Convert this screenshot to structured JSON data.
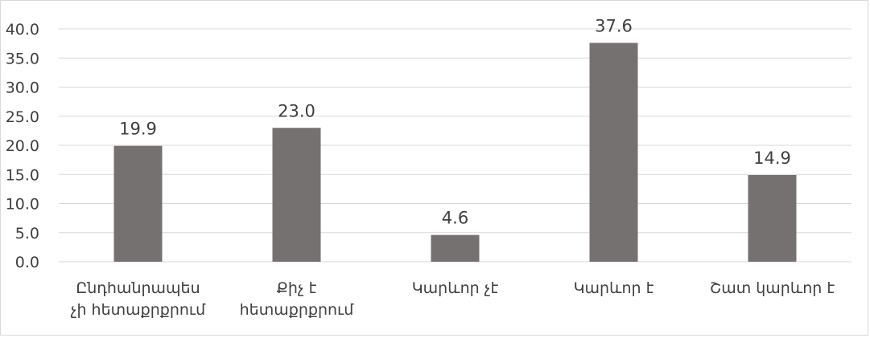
{
  "chart_data": {
    "type": "bar",
    "title": "",
    "xlabel": "",
    "ylabel": "",
    "categories": [
      [
        "Ընդհանրապես",
        "չի հետաքրքրում"
      ],
      [
        "Քիչ է",
        "հետաքրքրում"
      ],
      [
        "Կարևոր չէ"
      ],
      [
        "Կարևոր է"
      ],
      [
        "Շատ կարևոր է"
      ]
    ],
    "values": [
      19.9,
      23.0,
      4.6,
      37.6,
      14.9
    ],
    "value_labels": [
      "19.9",
      "23.0",
      "4.6",
      "37.6",
      "14.9"
    ],
    "yticks": [
      "0.0",
      "5.0",
      "10.0",
      "15.0",
      "20.0",
      "25.0",
      "30.0",
      "35.0",
      "40.0"
    ],
    "ylim": [
      0,
      40
    ],
    "grid": true,
    "legend": "none",
    "colors": {
      "bar": "#767171",
      "grid": "#d9d9d9",
      "text": "#404040"
    }
  }
}
